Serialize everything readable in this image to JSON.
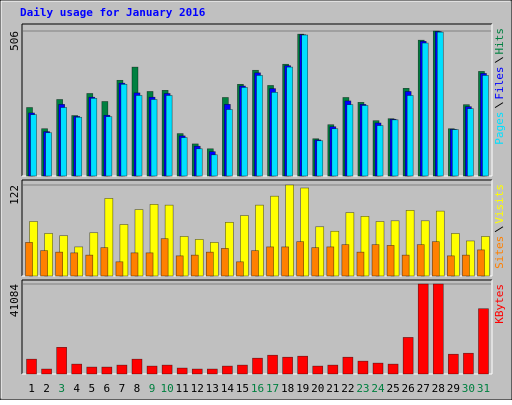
{
  "chart_data": [
    {
      "type": "bar",
      "title": "Daily usage for January 2016",
      "categories": [
        "1",
        "2",
        "3",
        "4",
        "5",
        "6",
        "7",
        "8",
        "9",
        "10",
        "11",
        "12",
        "13",
        "14",
        "15",
        "16",
        "17",
        "18",
        "19",
        "20",
        "21",
        "22",
        "23",
        "24",
        "25",
        "26",
        "27",
        "28",
        "29",
        "30",
        "31"
      ],
      "category_colors": [
        "#000000",
        "#000000",
        "#008040",
        "#000000",
        "#000000",
        "#000000",
        "#000000",
        "#000000",
        "#008040",
        "#008040",
        "#000000",
        "#000000",
        "#000000",
        "#000000",
        "#000000",
        "#008040",
        "#008040",
        "#000000",
        "#000000",
        "#000000",
        "#000000",
        "#000000",
        "#008040",
        "#008040",
        "#000000",
        "#000000",
        "#000000",
        "#000000",
        "#000000",
        "#008040",
        "#008040"
      ],
      "ylim": [
        0,
        506
      ],
      "yticks": [
        506
      ],
      "series": [
        {
          "name": "Hits",
          "color": "#008040",
          "values": [
            239,
            165,
            267,
            211,
            288,
            260,
            334,
            380,
            295,
            299,
            148,
            112,
            95,
            274,
            320,
            369,
            316,
            390,
            495,
            130,
            179,
            274,
            257,
            193,
            200,
            306,
            474,
            506,
            165,
            249,
            365
          ]
        },
        {
          "name": "Files",
          "color": "#0000ff",
          "values": [
            220,
            155,
            250,
            208,
            275,
            212,
            324,
            290,
            275,
            288,
            140,
            104,
            85,
            250,
            314,
            360,
            305,
            385,
            493,
            126,
            172,
            262,
            250,
            185,
            198,
            295,
            470,
            504,
            163,
            242,
            358
          ]
        },
        {
          "name": "Pages",
          "color": "#00e0ff",
          "values": [
            214,
            151,
            239,
            205,
            271,
            207,
            320,
            281,
            267,
            281,
            134,
            95,
            74,
            232,
            309,
            351,
            292,
            380,
            492,
            123,
            165,
            249,
            246,
            176,
            196,
            281,
            464,
            502,
            162,
            235,
            351
          ]
        }
      ]
    },
    {
      "type": "bar",
      "ylim": [
        0,
        122
      ],
      "yticks": [
        122
      ],
      "series": [
        {
          "name": "Visits",
          "color": "#ffff00",
          "values": [
            73,
            57,
            54,
            39,
            58,
            104,
            69,
            89,
            96,
            95,
            53,
            49,
            45,
            72,
            81,
            95,
            107,
            122,
            118,
            66,
            60,
            85,
            80,
            73,
            74,
            88,
            74,
            87,
            57,
            47,
            53
          ]
        },
        {
          "name": "Sites",
          "color": "#ff8000",
          "values": [
            45,
            34,
            32,
            31,
            28,
            38,
            19,
            31,
            31,
            50,
            27,
            28,
            32,
            37,
            19,
            34,
            39,
            39,
            46,
            38,
            39,
            42,
            32,
            42,
            41,
            28,
            42,
            46,
            27,
            28,
            35
          ]
        }
      ]
    },
    {
      "type": "bar",
      "ylim": [
        0,
        41084
      ],
      "yticks": [
        41084
      ],
      "series": [
        {
          "name": "KBytes",
          "color": "#ff0000",
          "values": [
            6770,
            2260,
            12190,
            4510,
            3160,
            3160,
            4060,
            6770,
            3610,
            4060,
            2710,
            2260,
            2260,
            3610,
            4060,
            7220,
            8580,
            7670,
            8130,
            3610,
            4060,
            7670,
            5870,
            4970,
            4510,
            16700,
            41084,
            41084,
            9030,
            9480,
            29800
          ]
        }
      ]
    }
  ]
}
